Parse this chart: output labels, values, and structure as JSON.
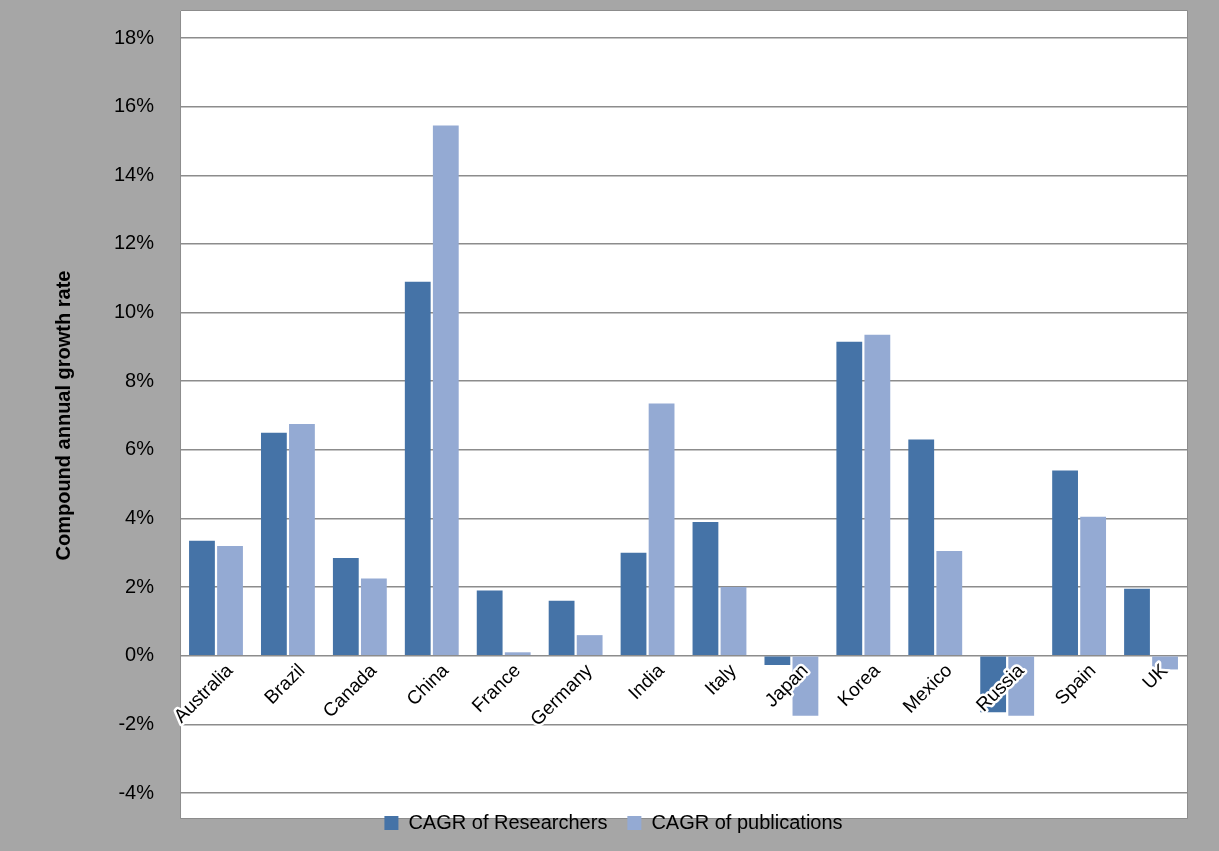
{
  "chart_data": {
    "type": "bar",
    "ylabel": "Compound annual growth rate",
    "categories": [
      "Australia",
      "Brazil",
      "Canada",
      "China",
      "France",
      "Germany",
      "India",
      "Italy",
      "Japan",
      "Korea",
      "Mexico",
      "Russia",
      "Spain",
      "UK"
    ],
    "series": [
      {
        "name": "CAGR of Researchers",
        "color": "#4573a7",
        "values": [
          3.35,
          6.5,
          2.85,
          10.9,
          1.9,
          1.6,
          3.0,
          3.9,
          -0.27,
          9.15,
          6.3,
          -1.65,
          5.4,
          1.95
        ]
      },
      {
        "name": "CAGR of publications",
        "color": "#94aad3",
        "values": [
          3.2,
          6.75,
          2.25,
          15.45,
          0.1,
          0.6,
          7.35,
          2.0,
          -1.75,
          9.35,
          3.05,
          -1.75,
          4.05,
          -0.4
        ]
      }
    ],
    "ylim": [
      -4,
      18
    ],
    "yticks": [
      {
        "value": -4,
        "label": "-4%"
      },
      {
        "value": -2,
        "label": "-2%"
      },
      {
        "value": 0,
        "label": "0%"
      },
      {
        "value": 2,
        "label": "2%"
      },
      {
        "value": 4,
        "label": "4%"
      },
      {
        "value": 6,
        "label": "6%"
      },
      {
        "value": 8,
        "label": "8%"
      },
      {
        "value": 10,
        "label": "10%"
      },
      {
        "value": 12,
        "label": "12%"
      },
      {
        "value": 14,
        "label": "14%"
      },
      {
        "value": 16,
        "label": "16%"
      },
      {
        "value": 18,
        "label": "18%"
      }
    ],
    "grid": "y",
    "legend": "bottom"
  }
}
